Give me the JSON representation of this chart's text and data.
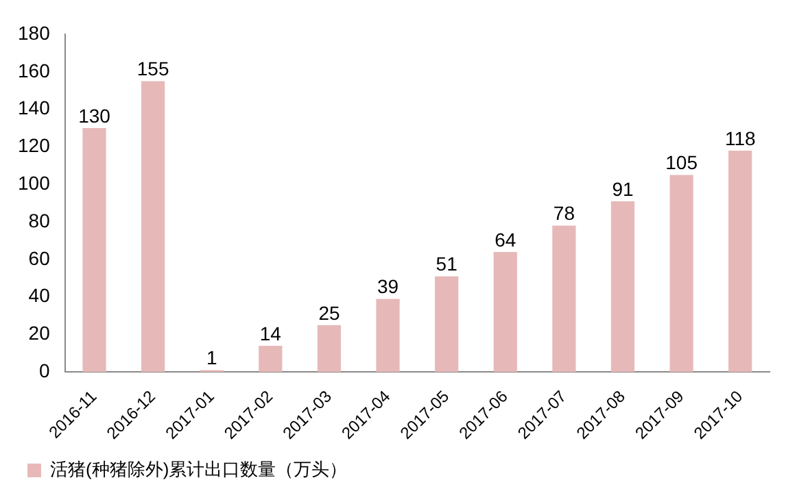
{
  "chart_data": {
    "type": "bar",
    "categories": [
      "2016-11",
      "2016-12",
      "2017-01",
      "2017-02",
      "2017-03",
      "2017-04",
      "2017-05",
      "2017-06",
      "2017-07",
      "2017-08",
      "2017-09",
      "2017-10"
    ],
    "series": [
      {
        "name": "活猪(种猪除外)累计出口数量（万头）",
        "color": "#e6b9b8",
        "values": [
          130,
          155,
          1,
          14,
          25,
          39,
          51,
          64,
          78,
          91,
          105,
          118
        ]
      }
    ],
    "ylim": [
      0,
      180
    ],
    "yticks": [
      0,
      20,
      40,
      60,
      80,
      100,
      120,
      140,
      160,
      180
    ],
    "grid": false,
    "legend": "bottom left",
    "data_labels": true
  }
}
